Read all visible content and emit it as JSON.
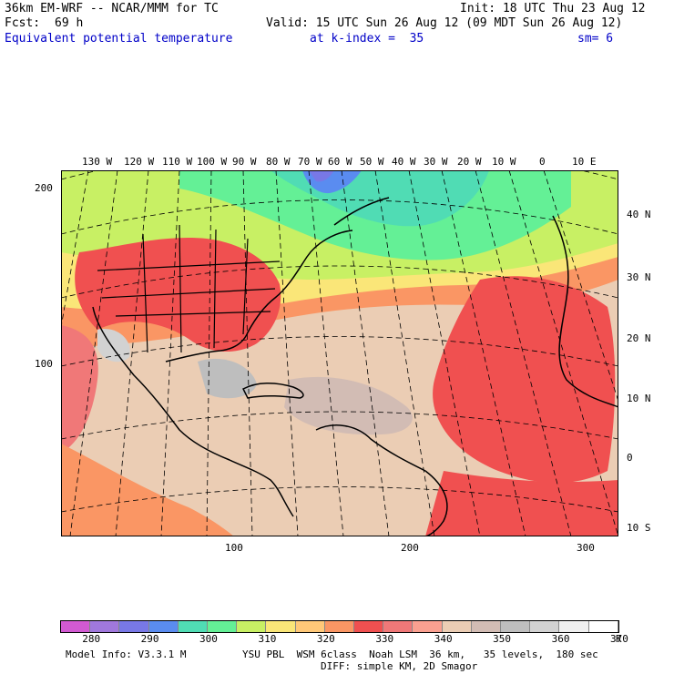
{
  "header": {
    "model": "36km EM-WRF -- NCAR/MMM for TC",
    "init": "Init: 18 UTC Thu 23 Aug 12",
    "fcst_label": "Fcst:",
    "fcst_value": "69 h",
    "valid": "Valid: 15 UTC Sun 26 Aug 12 (09 MDT Sun 26 Aug 12)",
    "field": "Equivalent potential temperature",
    "level": "at k-index =  35",
    "smoothing": "sm= 6"
  },
  "map": {
    "top_lon_labels": [
      "130 W",
      "120 W",
      "110 W",
      "100 W",
      "90 W",
      "80 W",
      "70 W",
      "60 W",
      "50 W",
      "40 W",
      "30 W",
      "20 W",
      "10 W",
      "0",
      "10 E"
    ],
    "right_lat_labels": [
      "40 N",
      "30 N",
      "20 N",
      "10 N",
      "0",
      "10 S"
    ],
    "left_grid_labels": [
      "200",
      "100"
    ],
    "bottom_grid_labels": [
      "100",
      "200",
      "300"
    ]
  },
  "colorbar": {
    "levels": [
      "280",
      "290",
      "300",
      "310",
      "320",
      "330",
      "340",
      "350",
      "360",
      "370"
    ],
    "unit": "K",
    "colors": [
      "#d25ad2",
      "#a078dc",
      "#7878e6",
      "#5a8cf0",
      "#50dcb4",
      "#64f096",
      "#c8f064",
      "#fae678",
      "#ffc878",
      "#fa9664",
      "#f05050",
      "#f07878",
      "#faa090",
      "#ebcdb4",
      "#d2bcb4",
      "#bebebe",
      "#d2d2d2",
      "#f0f0f0",
      "#ffffff"
    ]
  },
  "footer": {
    "model_info": "Model Info: V3.3.1 M",
    "physics1": "YSU PBL  WSM 6class  Noah LSM  36 km,   35 levels,  180 sec",
    "physics2": "DIFF: simple KM, 2D Smagor"
  }
}
